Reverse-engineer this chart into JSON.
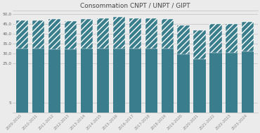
{
  "title": "Consommation CNPT / UNPT / GIPT",
  "title_fontsize": 6.5,
  "categories": [
    "2009-2010",
    "2010-2011",
    "2011-2012",
    "2012-2013",
    "2013-2014",
    "2014-2015",
    "2015-2016",
    "2016-2017",
    "2017-2018",
    "2018-2019",
    "2019-2020",
    "2020-2021",
    "2021-2022",
    "2022-2023",
    "2023-2024"
  ],
  "values_bottom": [
    32.5,
    32.5,
    32.0,
    32.0,
    32.5,
    32.5,
    32.5,
    32.5,
    32.5,
    32.5,
    29.5,
    27.0,
    30.5,
    30.5,
    31.0
  ],
  "values_top": [
    14.5,
    14.5,
    15.5,
    14.5,
    15.0,
    15.5,
    16.0,
    15.5,
    15.5,
    15.0,
    15.0,
    15.0,
    14.5,
    14.5,
    15.0
  ],
  "bar_color_solid": "#3a7d8c",
  "bar_color_hatch": "#3a7d8c",
  "hatch_color": "white",
  "ylim": [
    0,
    52
  ],
  "yticks": [
    5,
    25.0,
    30.0,
    35.0,
    40.0,
    45.0,
    50.0
  ],
  "ytick_labels": [
    "5",
    "25,0",
    "30,0",
    "35,0",
    "40,0",
    "45,0",
    "50,0"
  ],
  "grid_color": "#c8c8c8",
  "bg_color": "#ebebeb",
  "bar_width": 0.75,
  "tick_fontsize": 4.2,
  "xlabel_rotation": 45
}
